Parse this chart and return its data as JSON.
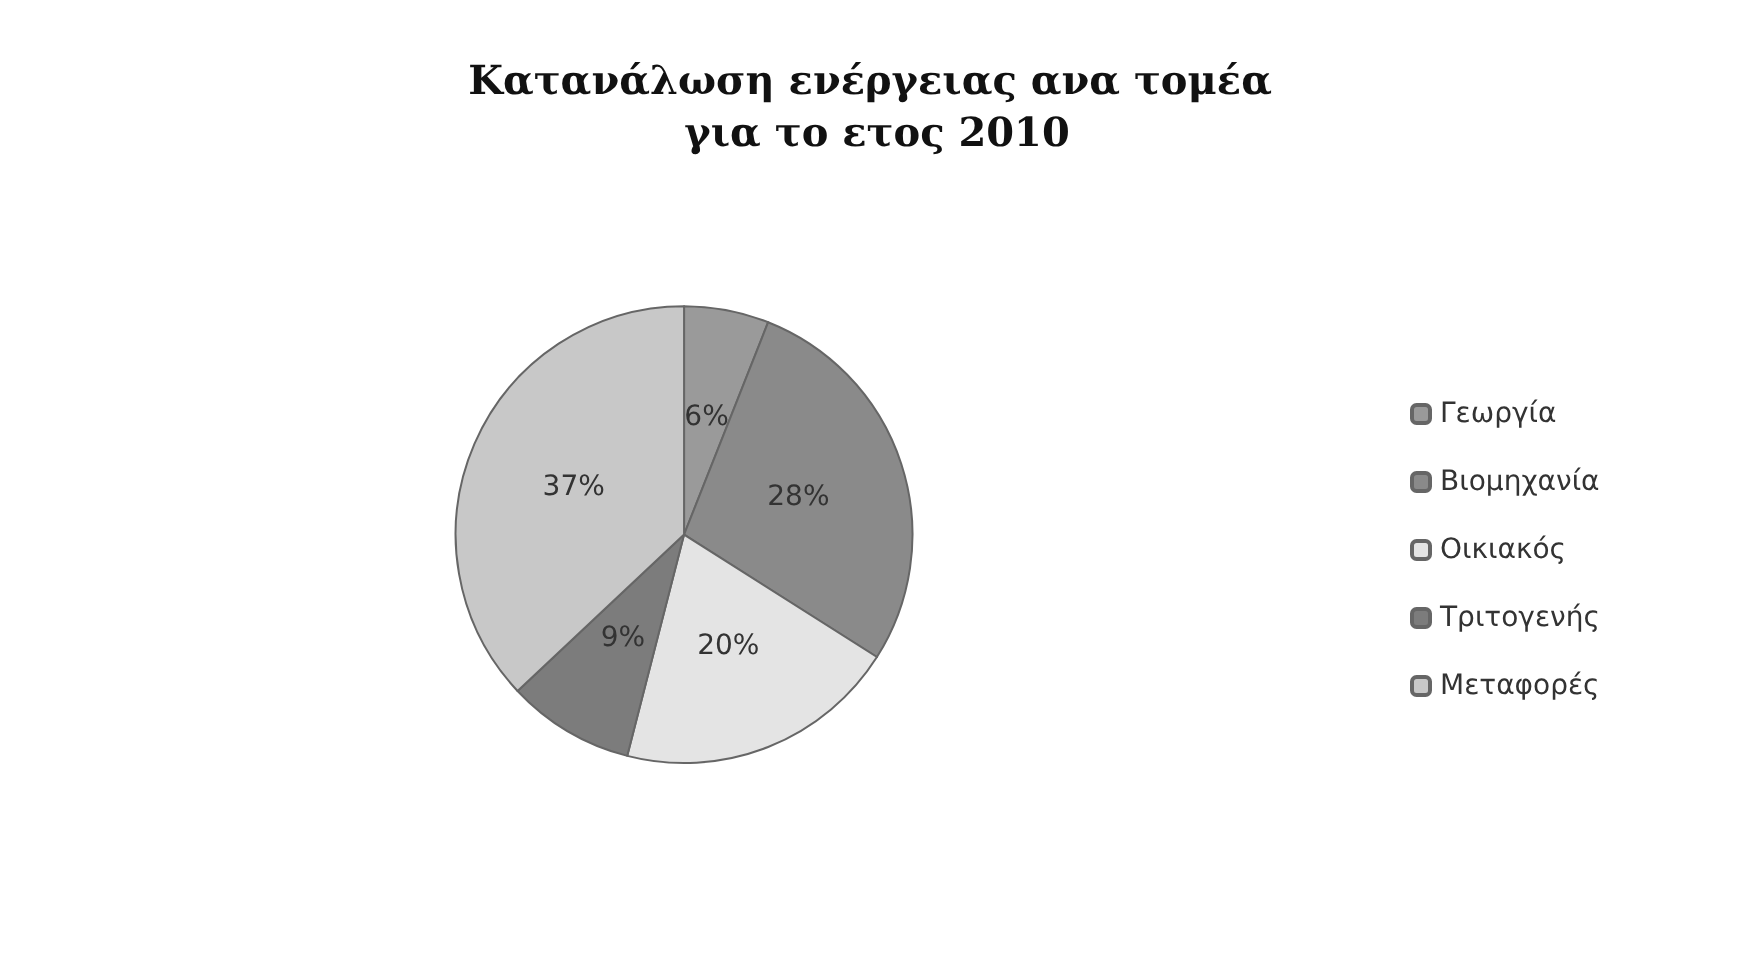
{
  "chart_data": {
    "type": "pie",
    "title": "Κατανάλωση ενέργειας ανα τομέα για το ετος 2010",
    "categories": [
      "Γεωργία",
      "Βιομηχανία",
      "Οικιακός",
      "Τριτογενής",
      "Μεταφορές"
    ],
    "values": [
      6,
      28,
      20,
      9,
      37
    ],
    "colors": [
      "#9a9a9a",
      "#8a8a8a",
      "#e4e4e4",
      "#7c7c7c",
      "#c8c8c8"
    ],
    "value_labels": [
      "6%",
      "28%",
      "20%",
      "9%",
      "37%"
    ],
    "legend": "right"
  }
}
